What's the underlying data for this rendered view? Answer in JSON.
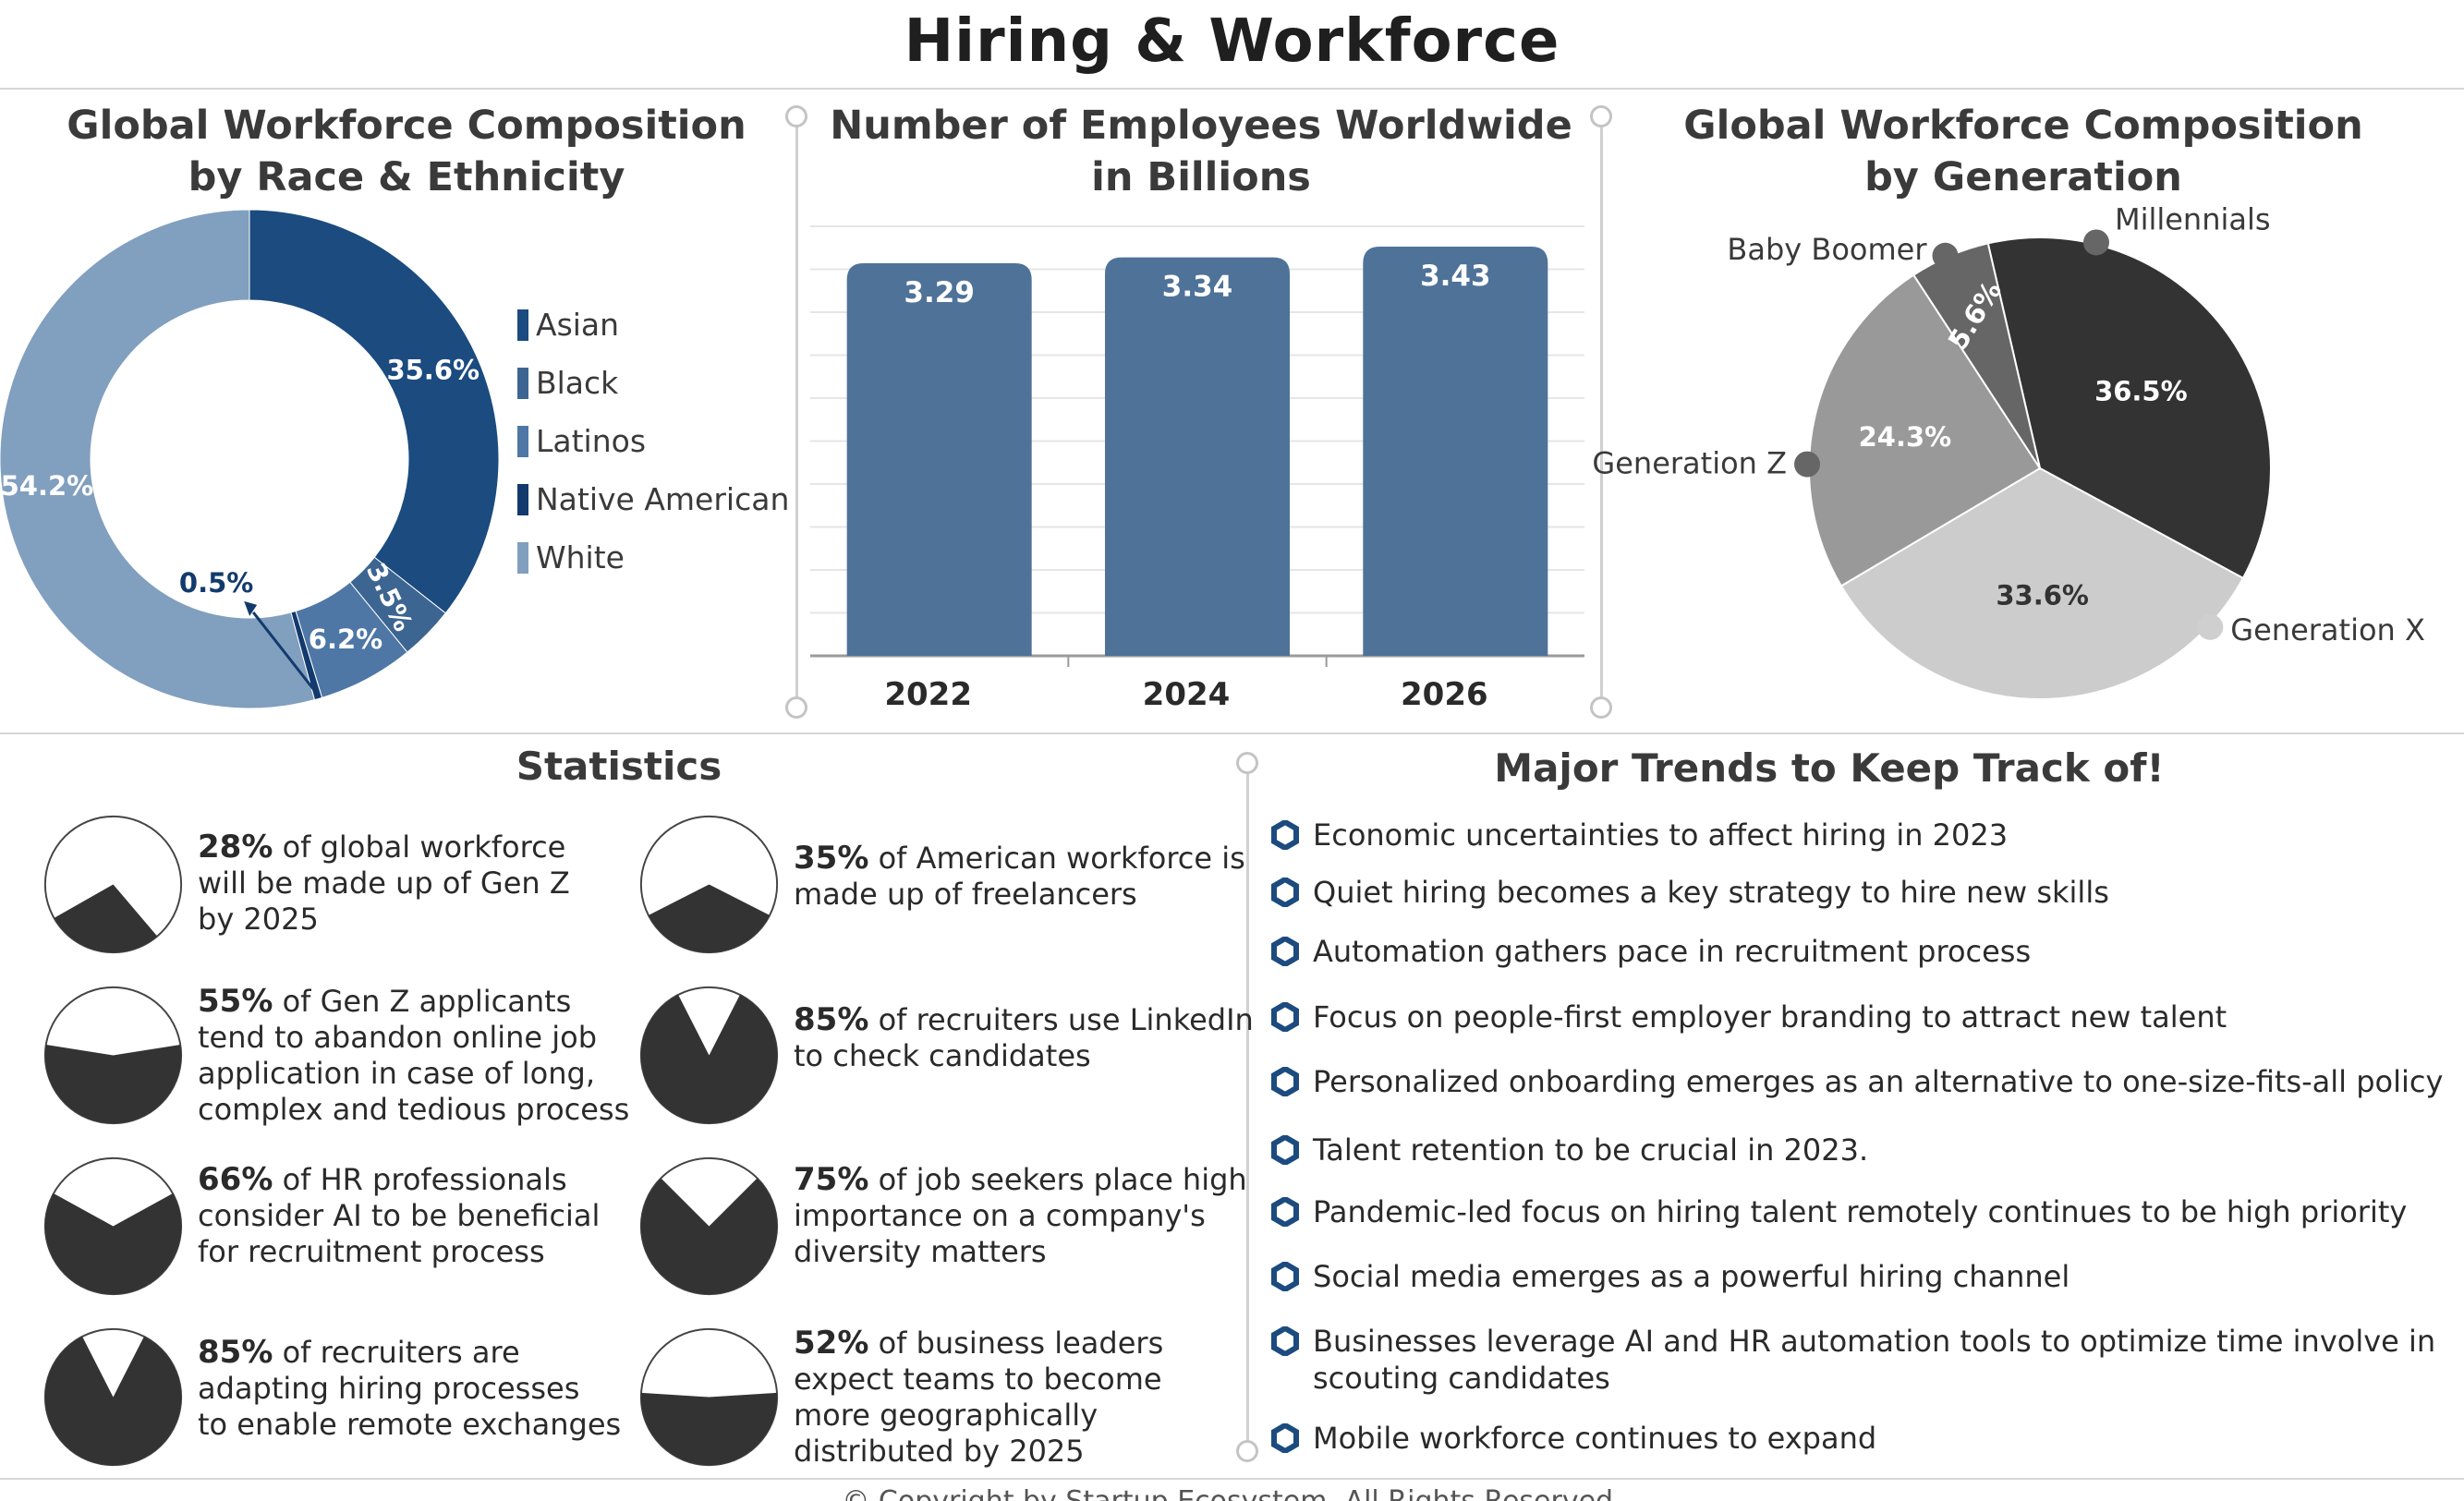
{
  "page": {
    "title": "Hiring & Workforce",
    "copyright": "© Copyright by Startup Ecosystem. All Rights Reserved."
  },
  "chart_data": [
    {
      "type": "pie",
      "variant": "donut",
      "title": "Global Workforce Composition\nby Race & Ethnicity",
      "categories": [
        "Asian",
        "Black",
        "Latinos",
        "Native American",
        "White"
      ],
      "values": [
        35.6,
        3.5,
        6.2,
        0.5,
        54.2
      ],
      "labels": [
        "35.6%",
        "3.5%",
        "6.2%",
        "0.5%",
        "54.2%"
      ],
      "colors": [
        "#1b4b7f",
        "#3d6592",
        "#4e77a5",
        "#123a6d",
        "#819fbe"
      ],
      "legend": "right"
    },
    {
      "type": "bar",
      "title": "Number of Employees Worldwide\nin Billions",
      "categories": [
        "2022",
        "2024",
        "2026"
      ],
      "values": [
        3.29,
        3.34,
        3.43
      ],
      "labels": [
        "3.29",
        "3.34",
        "3.43"
      ],
      "color": "#4f7299",
      "grid": true
    },
    {
      "type": "pie",
      "title": "Global Workforce Composition\nby Generation",
      "categories": [
        "Millennials",
        "Generation X",
        "Generation Z",
        "Baby Boomer"
      ],
      "values": [
        36.5,
        33.6,
        24.3,
        5.6
      ],
      "labels": [
        "36.5%",
        "33.6%",
        "24.3%",
        "5.6%"
      ],
      "colors": [
        "#333333",
        "#cccccc",
        "#999999",
        "#666666"
      ]
    }
  ],
  "statistics": {
    "title": "Statistics",
    "items": [
      {
        "value": 28,
        "pct": "28%",
        "text": "of global workforce\nwill be made up of Gen Z\nby 2025"
      },
      {
        "value": 35,
        "pct": "35%",
        "text": "of American workforce is\nmade up of freelancers"
      },
      {
        "value": 55,
        "pct": "55%",
        "text": "of Gen Z applicants\ntend to abandon online job\napplication in case of long,\ncomplex and tedious process"
      },
      {
        "value": 85,
        "pct": "85%",
        "text": "of recruiters use LinkedIn\nto check candidates"
      },
      {
        "value": 66,
        "pct": "66%",
        "text": "of HR professionals\nconsider AI to be beneficial\nfor recruitment process"
      },
      {
        "value": 75,
        "pct": "75%",
        "text": "of job seekers place high\nimportance on a company's\ndiversity matters"
      },
      {
        "value": 85,
        "pct": "85%",
        "text": "of recruiters are\nadapting hiring processes\nto enable remote exchanges"
      },
      {
        "value": 52,
        "pct": "52%",
        "text": "of business leaders\nexpect teams to become\nmore geographically\ndistributed by 2025"
      }
    ]
  },
  "trends": {
    "title": "Major Trends to Keep Track of!",
    "items": [
      "Economic uncertainties to affect hiring in 2023",
      "Quiet hiring becomes a key strategy to hire new skills",
      "Automation gathers pace in recruitment process",
      "Focus on people-first employer branding to attract new talent",
      "Personalized onboarding emerges as an alternative to one-size-fits-all policy",
      "Talent retention to be crucial in 2023.",
      "Pandemic-led focus on hiring talent remotely continues to be high priority",
      "Social media emerges as a powerful hiring channel",
      "Businesses leverage AI and HR automation tools to optimize time involve in\nscouting candidates",
      "Mobile workforce continues to expand"
    ]
  },
  "colors": {
    "accent": "#1b4b7f",
    "bar": "#4f7299",
    "dark": "#333333"
  }
}
